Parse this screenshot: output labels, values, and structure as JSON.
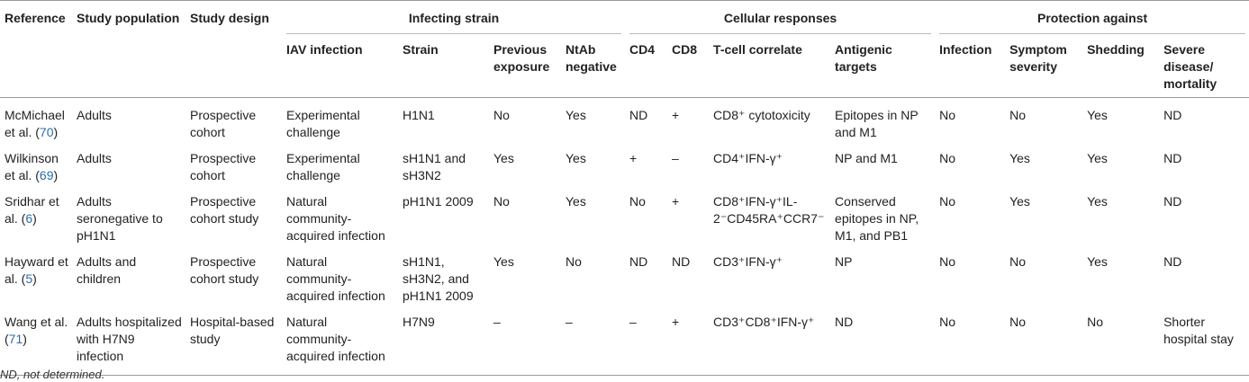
{
  "headers": {
    "reference": "Reference",
    "study_population": "Study population",
    "study_design": "Study design",
    "infecting_strain": "Infecting strain",
    "cellular_responses": "Cellular responses",
    "protection_against": "Protection against",
    "iav_infection": "IAV infection",
    "strain": "Strain",
    "previous_exposure": "Previous exposure",
    "ntab_negative": "NtAb negative",
    "cd4": "CD4",
    "cd8": "CD8",
    "tcell_correlate": "T-cell correlate",
    "antigenic_targets": "Antigenic targets",
    "infection": "Infection",
    "symptom_severity": "Symptom severity",
    "shedding": "Shedding",
    "severe_disease": "Severe disease/ mortality"
  },
  "rows": [
    {
      "ref_name": "McMichael et al. (",
      "ref_num": "70",
      "ref_close": ")",
      "population": "Adults",
      "design": "Prospective cohort",
      "iav": "Experimental challenge",
      "strain": "H1N1",
      "previous": "No",
      "ntab": "Yes",
      "cd4": "ND",
      "cd8": "+",
      "tcell": "CD8⁺ cytotoxicity",
      "antigen": "Epitopes in NP and M1",
      "infection": "No",
      "symptom": "No",
      "shedding": "Yes",
      "severe": "ND"
    },
    {
      "ref_name": "Wilkinson et al. (",
      "ref_num": "69",
      "ref_close": ")",
      "population": "Adults",
      "design": "Prospective cohort",
      "iav": "Experimental challenge",
      "strain": "sH1N1 and sH3N2",
      "previous": "Yes",
      "ntab": "Yes",
      "cd4": "+",
      "cd8": "–",
      "tcell": "CD4⁺IFN-γ⁺",
      "antigen": "NP and M1",
      "infection": "No",
      "symptom": "Yes",
      "shedding": "Yes",
      "severe": "ND"
    },
    {
      "ref_name": "Sridhar et al. (",
      "ref_num": "6",
      "ref_close": ")",
      "population": "Adults seronegative to pH1N1",
      "design": "Prospective cohort study",
      "iav": "Natural community-acquired infection",
      "strain": "pH1N1 2009",
      "previous": "No",
      "ntab": "Yes",
      "cd4": "No",
      "cd8": "+",
      "tcell": "CD8⁺IFN-γ⁺IL-2⁻CD45RA⁺CCR7⁻",
      "antigen": "Conserved epitopes in NP, M1, and PB1",
      "infection": "No",
      "symptom": "Yes",
      "shedding": "Yes",
      "severe": "ND"
    },
    {
      "ref_name": "Hayward et al. (",
      "ref_num": "5",
      "ref_close": ")",
      "population": "Adults and children",
      "design": "Prospective cohort study",
      "iav": "Natural community-acquired infection",
      "strain": "sH1N1, sH3N2, and pH1N1 2009",
      "previous": "Yes",
      "ntab": "No",
      "cd4": "ND",
      "cd8": "ND",
      "tcell": "CD3⁺IFN-γ⁺",
      "antigen": "NP",
      "infection": "No",
      "symptom": "No",
      "shedding": "Yes",
      "severe": "ND"
    },
    {
      "ref_name": "Wang et al. (",
      "ref_num": "71",
      "ref_close": ")",
      "population": "Adults hospitalized with H7N9 infection",
      "design": "Hospital-based study",
      "iav": "Natural community-acquired infection",
      "strain": "H7N9",
      "previous": "–",
      "ntab": "–",
      "cd4": "–",
      "cd8": "+",
      "tcell": "CD3⁺CD8⁺IFN-γ⁺",
      "antigen": "ND",
      "infection": "No",
      "symptom": "No",
      "shedding": "No",
      "severe": "Shorter hospital stay"
    }
  ],
  "footnote": "ND, not determined."
}
